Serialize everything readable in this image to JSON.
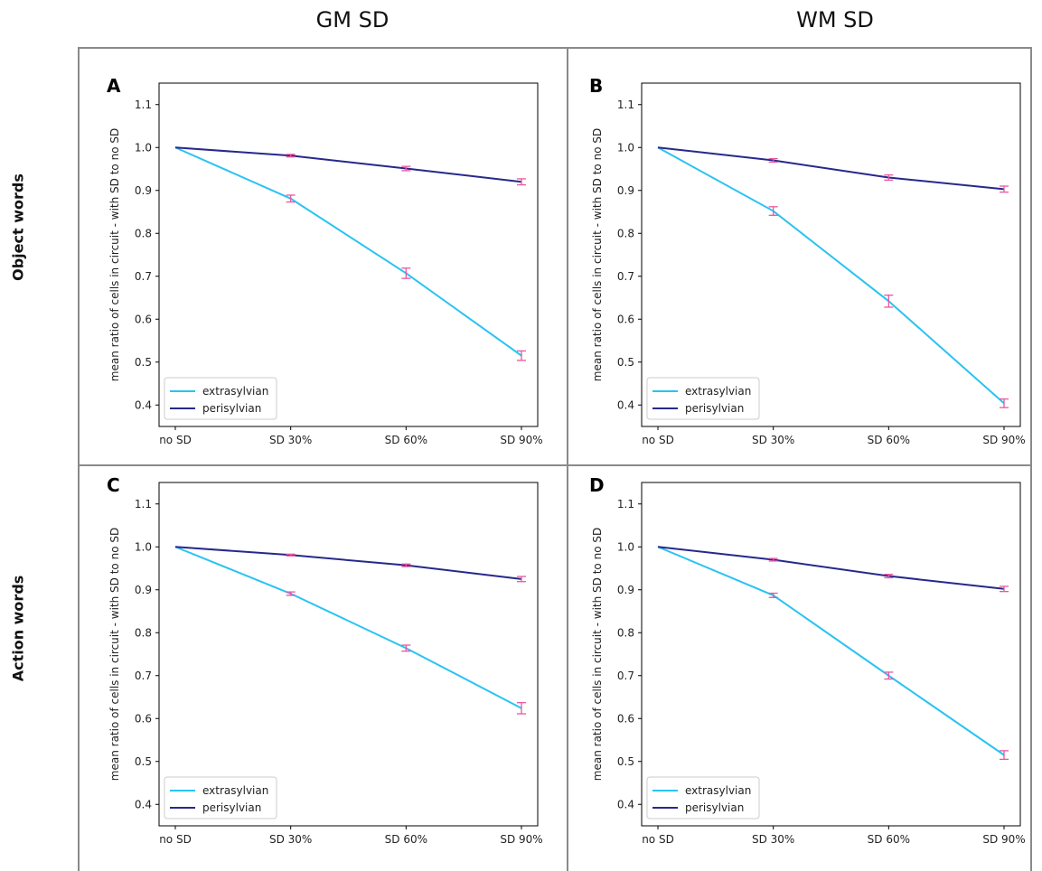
{
  "column_titles": [
    "GM SD",
    "WM SD"
  ],
  "row_titles": [
    "Object words",
    "Action words"
  ],
  "colors": {
    "extrasylvian": "#29c3f2",
    "perisylvian": "#27288c",
    "errorbar": "#e8579e",
    "frame": "#8a8a8a"
  },
  "chart_data": [
    {
      "type": "line",
      "panel": "A",
      "row": "Object words",
      "column": "GM SD",
      "categories": [
        "no SD",
        "SD 30%",
        "SD 60%",
        "SD 90%"
      ],
      "ylabel": "mean ratio of cells in circuit - with SD to no SD",
      "ylim": [
        0.35,
        1.15
      ],
      "yticks": [
        "0.4",
        "0.5",
        "0.6",
        "0.7",
        "0.8",
        "0.9",
        "1.0",
        "1.1"
      ],
      "legend_position": "lower-left",
      "series": [
        {
          "name": "extrasylvian",
          "values": [
            1.0,
            0.881,
            0.707,
            0.515
          ],
          "errors": [
            0.0,
            0.008,
            0.012,
            0.011
          ]
        },
        {
          "name": "perisylvian",
          "values": [
            1.0,
            0.981,
            0.951,
            0.92
          ],
          "errors": [
            0.0,
            0.003,
            0.005,
            0.007
          ]
        }
      ]
    },
    {
      "type": "line",
      "panel": "B",
      "row": "Object words",
      "column": "WM SD",
      "categories": [
        "no SD",
        "SD 30%",
        "SD 60%",
        "SD 90%"
      ],
      "ylabel": "mean ratio of cells in circuit - with SD to no SD",
      "ylim": [
        0.35,
        1.15
      ],
      "yticks": [
        "0.4",
        "0.5",
        "0.6",
        "0.7",
        "0.8",
        "0.9",
        "1.0",
        "1.1"
      ],
      "legend_position": "lower-left",
      "series": [
        {
          "name": "extrasylvian",
          "values": [
            1.0,
            0.852,
            0.642,
            0.404
          ],
          "errors": [
            0.0,
            0.01,
            0.014,
            0.01
          ]
        },
        {
          "name": "perisylvian",
          "values": [
            1.0,
            0.97,
            0.93,
            0.903
          ],
          "errors": [
            0.0,
            0.004,
            0.006,
            0.007
          ]
        }
      ]
    },
    {
      "type": "line",
      "panel": "C",
      "row": "Action words",
      "column": "GM SD",
      "categories": [
        "no SD",
        "SD 30%",
        "SD 60%",
        "SD 90%"
      ],
      "ylabel": "mean ratio of cells in circuit - with SD to no SD",
      "ylim": [
        0.35,
        1.15
      ],
      "yticks": [
        "0.4",
        "0.5",
        "0.6",
        "0.7",
        "0.8",
        "0.9",
        "1.0",
        "1.1"
      ],
      "legend_position": "lower-left",
      "series": [
        {
          "name": "extrasylvian",
          "values": [
            1.0,
            0.891,
            0.764,
            0.624
          ],
          "errors": [
            0.0,
            0.004,
            0.007,
            0.013
          ]
        },
        {
          "name": "perisylvian",
          "values": [
            1.0,
            0.981,
            0.957,
            0.925
          ],
          "errors": [
            0.0,
            0.002,
            0.003,
            0.006
          ]
        }
      ]
    },
    {
      "type": "line",
      "panel": "D",
      "row": "Action words",
      "column": "WM SD",
      "categories": [
        "no SD",
        "SD 30%",
        "SD 60%",
        "SD 90%"
      ],
      "ylabel": "mean ratio of cells in circuit - with SD to no SD",
      "ylim": [
        0.35,
        1.15
      ],
      "yticks": [
        "0.4",
        "0.5",
        "0.6",
        "0.7",
        "0.8",
        "0.9",
        "1.0",
        "1.1"
      ],
      "legend_position": "lower-left",
      "series": [
        {
          "name": "extrasylvian",
          "values": [
            1.0,
            0.887,
            0.7,
            0.515
          ],
          "errors": [
            0.0,
            0.005,
            0.008,
            0.01
          ]
        },
        {
          "name": "perisylvian",
          "values": [
            1.0,
            0.97,
            0.932,
            0.902
          ],
          "errors": [
            0.0,
            0.003,
            0.004,
            0.006
          ]
        }
      ]
    }
  ]
}
